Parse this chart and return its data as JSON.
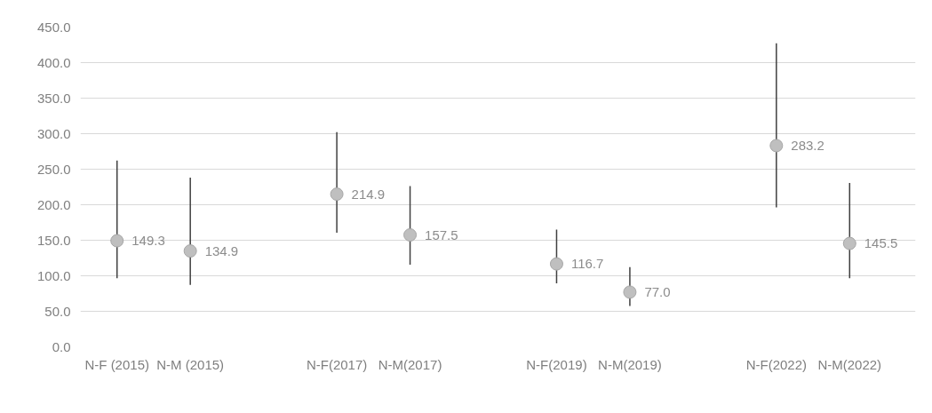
{
  "chart_data": {
    "type": "scatter",
    "categories": [
      "N-F (2015)",
      "N-M (2015)",
      null,
      "N-F(2017)",
      "N-M(2017)",
      null,
      "N-F(2019)",
      "N-M(2019)",
      null,
      "N-F(2022)",
      "N-M(2022)"
    ],
    "values": [
      149.3,
      134.9,
      null,
      214.9,
      157.5,
      null,
      116.7,
      77.0,
      null,
      283.2,
      145.5
    ],
    "value_labels": [
      "149.3",
      "134.9",
      null,
      "214.9",
      "157.5",
      null,
      "116.7",
      "77.0",
      null,
      "283.2",
      "145.5"
    ],
    "errors": [
      [
        96.6,
        262.2
      ],
      [
        87.2,
        238.1
      ],
      null,
      [
        160.7,
        302.2
      ],
      [
        115.7,
        226.1
      ],
      null,
      [
        89.5,
        165.1
      ],
      [
        57.4,
        112.2
      ],
      null,
      [
        196.3,
        427.3
      ],
      [
        96.6,
        230.6
      ]
    ],
    "color": "#bfbfbf",
    "marker": "circle",
    "grid": "y",
    "legend": false,
    "ylim": [
      0,
      450
    ],
    "yticks": [
      {
        "value": 0,
        "label": "0.0"
      },
      {
        "value": 50,
        "label": "50.0"
      },
      {
        "value": 100,
        "label": "100.0"
      },
      {
        "value": 150,
        "label": "150.0"
      },
      {
        "value": 200,
        "label": "200.0"
      },
      {
        "value": 250,
        "label": "250.0"
      },
      {
        "value": 300,
        "label": "300.0"
      },
      {
        "value": 350,
        "label": "350.0"
      },
      {
        "value": 400,
        "label": "400.0"
      },
      {
        "value": 450,
        "label": "450.0"
      }
    ]
  }
}
